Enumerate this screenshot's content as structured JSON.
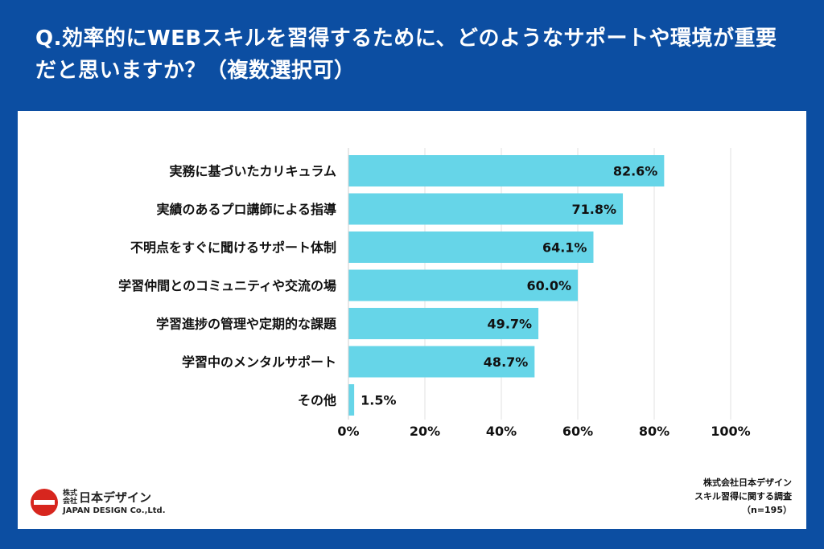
{
  "title": "Q.効率的にWEBスキルを習得するために、どのようなサポートや環境が重要だと思いますか？（複数選択可）",
  "chart_data": {
    "type": "bar",
    "orientation": "horizontal",
    "categories": [
      "実務に基づいたカリキュラム",
      "実績のあるプロ講師による指導",
      "不明点をすぐに聞けるサポート体制",
      "学習仲間とのコミュニティや交流の場",
      "学習進捗の管理や定期的な課題",
      "学習中のメンタルサポート",
      "その他"
    ],
    "values": [
      82.6,
      71.8,
      64.1,
      60.0,
      49.7,
      48.7,
      1.5
    ],
    "value_labels": [
      "82.6%",
      "71.8%",
      "64.1%",
      "60.0%",
      "49.7%",
      "48.7%",
      "1.5%"
    ],
    "xlim": [
      0,
      100
    ],
    "ticks": [
      0,
      20,
      40,
      60,
      80,
      100
    ],
    "tick_labels": [
      "0%",
      "20%",
      "40%",
      "60%",
      "80%",
      "100%"
    ],
    "bar_color": "#66d5e8",
    "grid": true
  },
  "logo": {
    "kabushiki": "株式会社",
    "name": "日本デザイン",
    "english": "JAPAN DESIGN Co.,Ltd."
  },
  "source": {
    "line1": "株式会社日本デザイン",
    "line2": "スキル習得に関する調査",
    "line3": "（n=195）"
  },
  "colors": {
    "background": "#0c4ea2",
    "panel": "#ffffff",
    "bar": "#66d5e8",
    "logo_red": "#d7261e"
  }
}
